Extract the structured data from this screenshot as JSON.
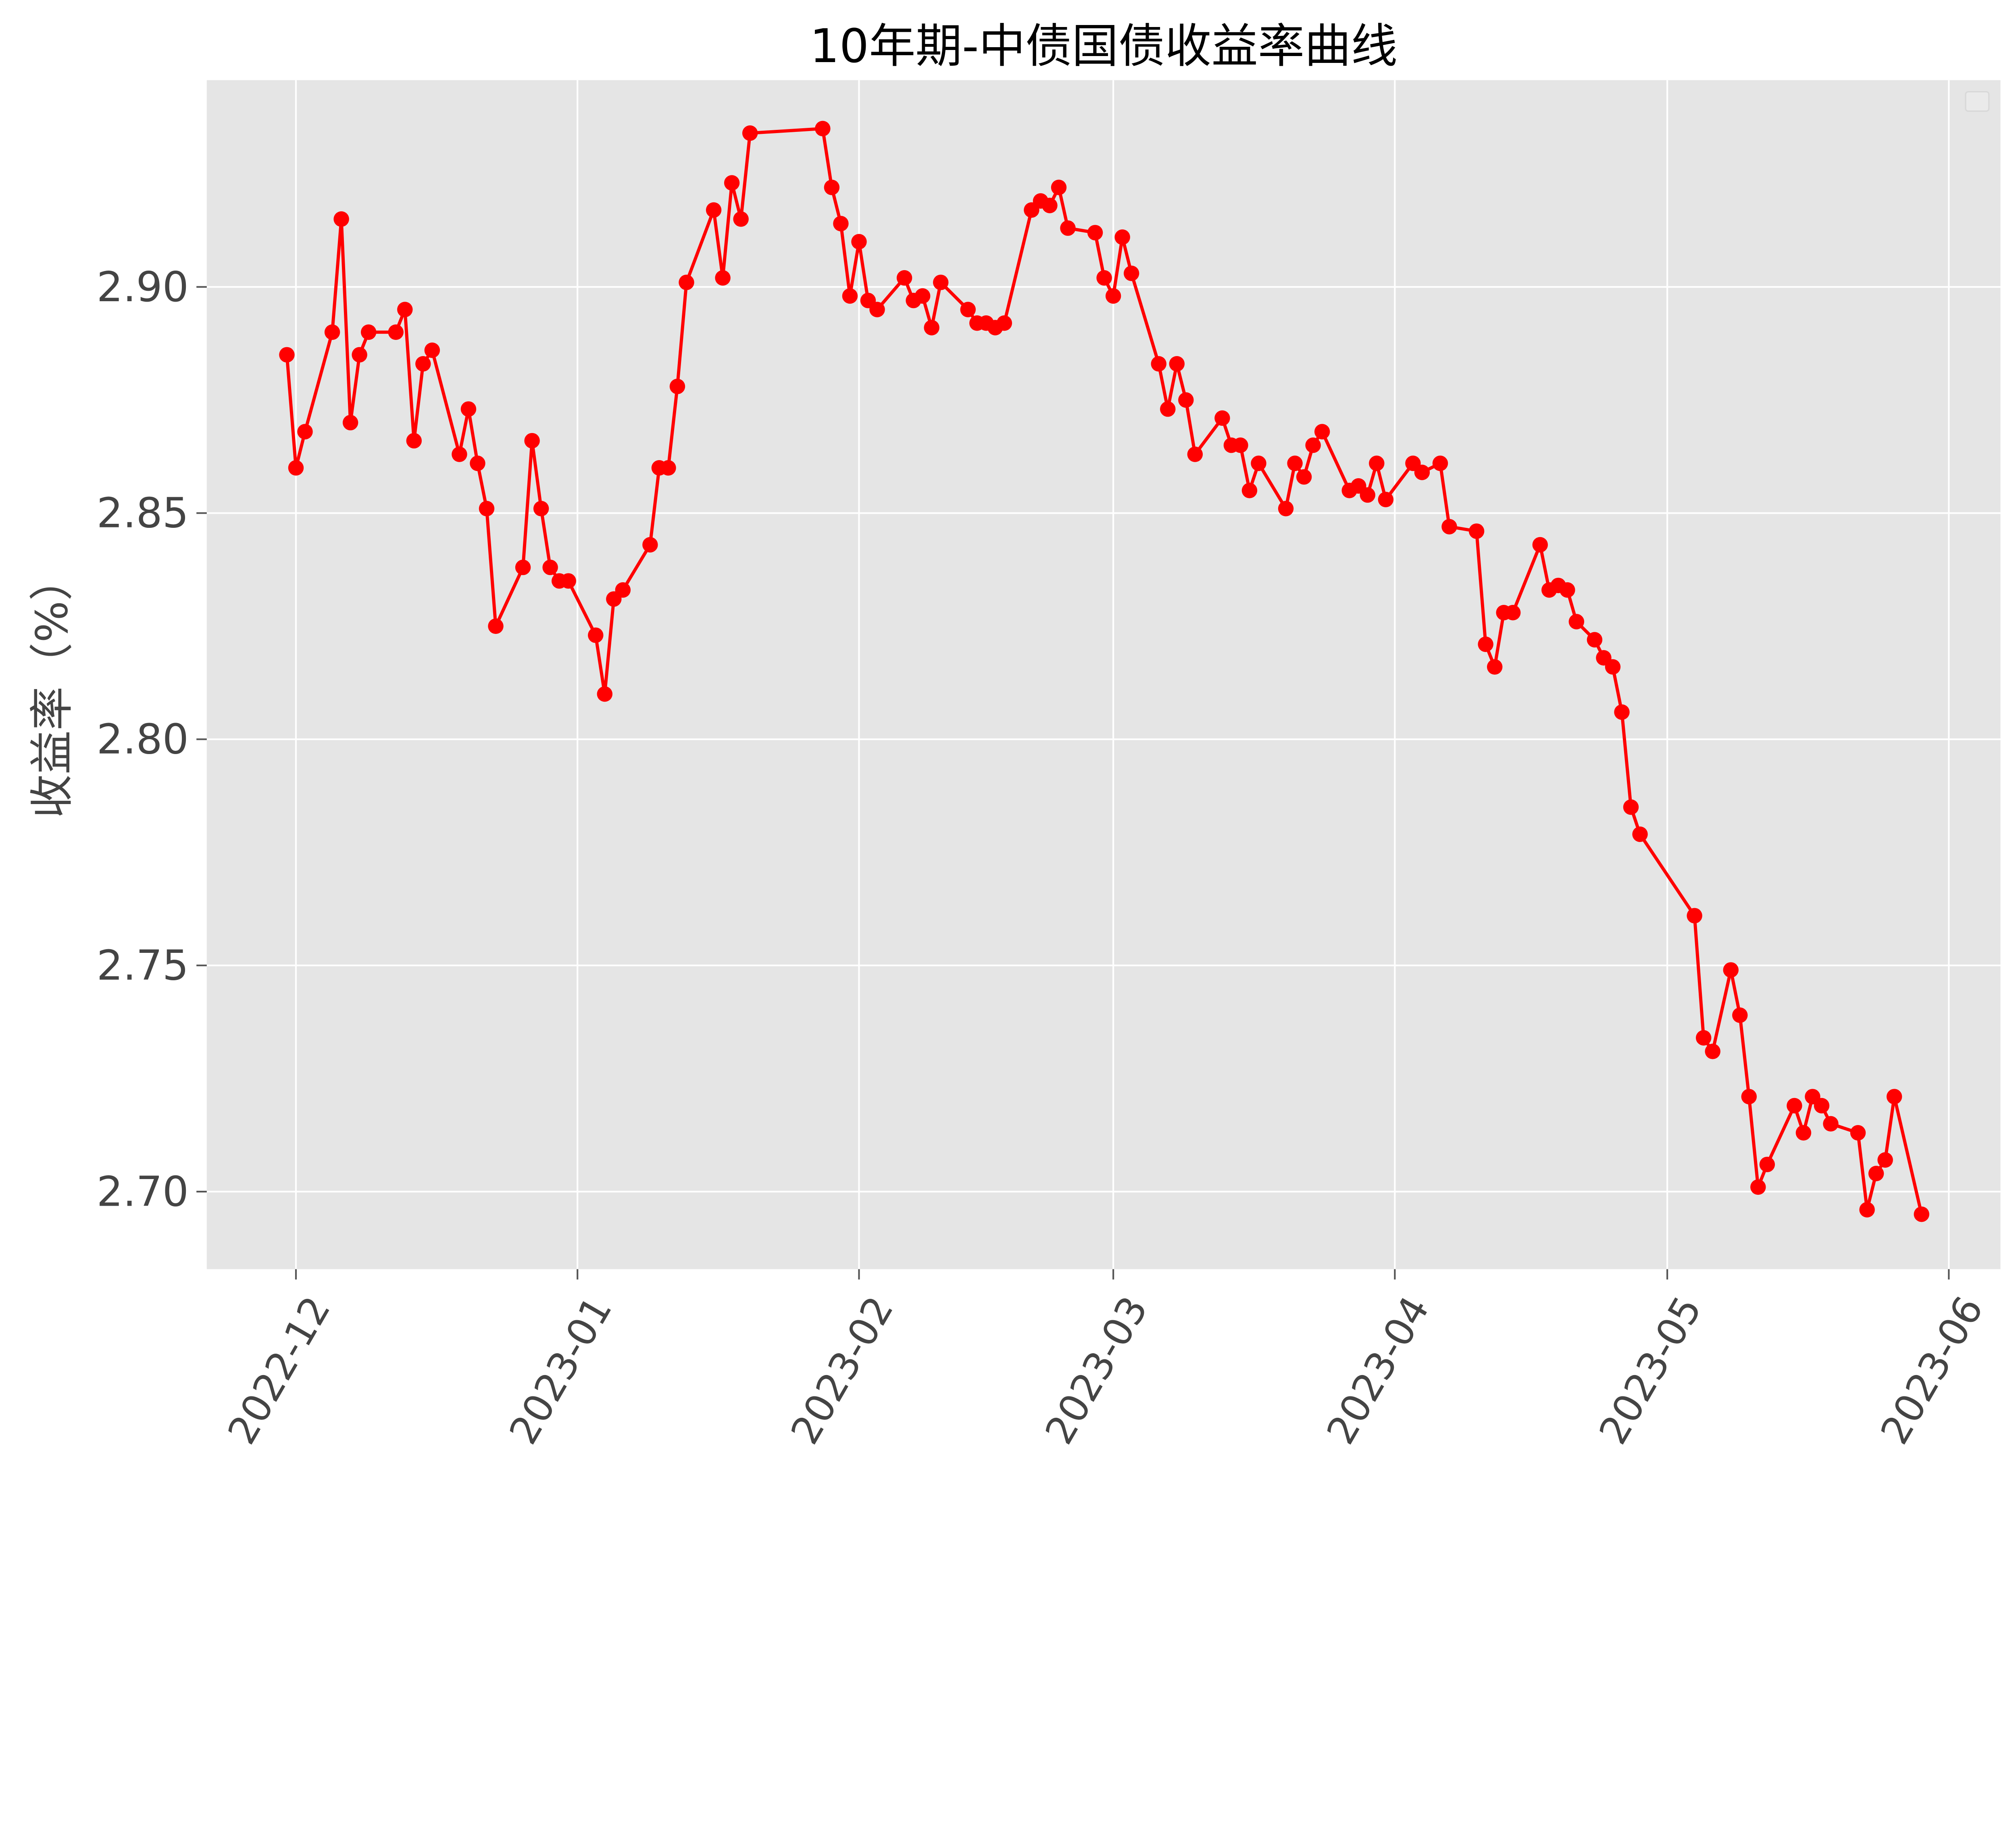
{
  "chart_data": {
    "type": "line",
    "title": "10年期-中债国债收益率曲线",
    "xlabel": "",
    "ylabel": "收益率（%）",
    "ylim": [
      2.683,
      2.946
    ],
    "xlim": [
      "2022-11-21",
      "2023-06-06"
    ],
    "grid": true,
    "legend": "top-right (empty)",
    "colors": {
      "line": "#ff0000",
      "marker": "#ff0000",
      "background": "#e5e5e5",
      "grid": "#ffffff"
    },
    "x_ticks": [
      "2022-12",
      "2023-01",
      "2023-02",
      "2023-03",
      "2023-04",
      "2023-05",
      "2023-06"
    ],
    "x_tick_dates": [
      "2022-12-01",
      "2023-01-01",
      "2023-02-01",
      "2023-03-01",
      "2023-04-01",
      "2023-05-01",
      "2023-06-01"
    ],
    "y_ticks": [
      "2.70",
      "2.75",
      "2.80",
      "2.85",
      "2.90"
    ],
    "x": [
      "2022-11-30",
      "2022-12-01",
      "2022-12-02",
      "2022-12-05",
      "2022-12-06",
      "2022-12-07",
      "2022-12-08",
      "2022-12-09",
      "2022-12-12",
      "2022-12-13",
      "2022-12-14",
      "2022-12-15",
      "2022-12-16",
      "2022-12-19",
      "2022-12-20",
      "2022-12-21",
      "2022-12-22",
      "2022-12-23",
      "2022-12-26",
      "2022-12-27",
      "2022-12-28",
      "2022-12-29",
      "2022-12-30",
      "2022-12-31",
      "2023-01-03",
      "2023-01-04",
      "2023-01-05",
      "2023-01-06",
      "2023-01-09",
      "2023-01-10",
      "2023-01-11",
      "2023-01-12",
      "2023-01-13",
      "2023-01-16",
      "2023-01-17",
      "2023-01-18",
      "2023-01-19",
      "2023-01-20",
      "2023-01-28",
      "2023-01-29",
      "2023-01-30",
      "2023-01-31",
      "2023-02-01",
      "2023-02-02",
      "2023-02-03",
      "2023-02-06",
      "2023-02-07",
      "2023-02-08",
      "2023-02-09",
      "2023-02-10",
      "2023-02-13",
      "2023-02-14",
      "2023-02-15",
      "2023-02-16",
      "2023-02-17",
      "2023-02-20",
      "2023-02-21",
      "2023-02-22",
      "2023-02-23",
      "2023-02-24",
      "2023-02-27",
      "2023-02-28",
      "2023-03-01",
      "2023-03-02",
      "2023-03-03",
      "2023-03-06",
      "2023-03-07",
      "2023-03-08",
      "2023-03-09",
      "2023-03-10",
      "2023-03-13",
      "2023-03-14",
      "2023-03-15",
      "2023-03-16",
      "2023-03-17",
      "2023-03-20",
      "2023-03-21",
      "2023-03-22",
      "2023-03-23",
      "2023-03-24",
      "2023-03-27",
      "2023-03-28",
      "2023-03-29",
      "2023-03-30",
      "2023-03-31",
      "2023-04-03",
      "2023-04-04",
      "2023-04-06",
      "2023-04-07",
      "2023-04-10",
      "2023-04-11",
      "2023-04-12",
      "2023-04-13",
      "2023-04-14",
      "2023-04-17",
      "2023-04-18",
      "2023-04-19",
      "2023-04-20",
      "2023-04-21",
      "2023-04-23",
      "2023-04-24",
      "2023-04-25",
      "2023-04-26",
      "2023-04-27",
      "2023-04-28",
      "2023-05-04",
      "2023-05-05",
      "2023-05-06",
      "2023-05-08",
      "2023-05-09",
      "2023-05-10",
      "2023-05-11",
      "2023-05-12",
      "2023-05-15",
      "2023-05-16",
      "2023-05-17",
      "2023-05-18",
      "2023-05-19",
      "2023-05-22",
      "2023-05-23",
      "2023-05-24",
      "2023-05-25",
      "2023-05-26",
      "2023-05-29"
    ],
    "series": [
      {
        "values": [
          2.885,
          2.86,
          2.868,
          2.89,
          2.915,
          2.87,
          2.885,
          2.89,
          2.89,
          2.895,
          2.866,
          2.883,
          2.886,
          2.863,
          2.873,
          2.861,
          2.851,
          2.825,
          2.838,
          2.866,
          2.851,
          2.838,
          2.835,
          2.835,
          2.823,
          2.81,
          2.831,
          2.833,
          2.843,
          2.86,
          2.86,
          2.878,
          2.901,
          2.917,
          2.902,
          2.923,
          2.915,
          2.934,
          2.935,
          2.922,
          2.914,
          2.898,
          2.91,
          2.897,
          2.895,
          2.902,
          2.897,
          2.898,
          2.891,
          2.901,
          2.895,
          2.892,
          2.892,
          2.891,
          2.892,
          2.917,
          2.919,
          2.918,
          2.922,
          2.913,
          2.912,
          2.902,
          2.898,
          2.911,
          2.903,
          2.883,
          2.873,
          2.883,
          2.875,
          2.863,
          2.871,
          2.865,
          2.865,
          2.855,
          2.861,
          2.851,
          2.861,
          2.858,
          2.865,
          2.868,
          2.855,
          2.856,
          2.854,
          2.861,
          2.853,
          2.861,
          2.859,
          2.861,
          2.847,
          2.846,
          2.821,
          2.816,
          2.828,
          2.828,
          2.843,
          2.833,
          2.834,
          2.833,
          2.826,
          2.822,
          2.818,
          2.816,
          2.806,
          2.785,
          2.779,
          2.761,
          2.734,
          2.731,
          2.749,
          2.739,
          2.721,
          2.701,
          2.706,
          2.719,
          2.713,
          2.721,
          2.719,
          2.715,
          2.713,
          2.696,
          2.704,
          2.707,
          2.721,
          2.695
        ]
      }
    ]
  }
}
